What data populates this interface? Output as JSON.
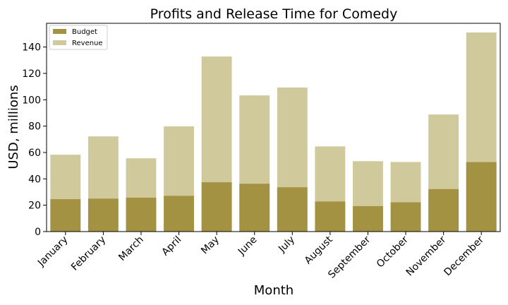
{
  "chart_data": {
    "type": "bar",
    "title": "Profits and Release Time for Comedy",
    "xlabel": "Month",
    "ylabel": "USD, millions",
    "ylim": [
      0,
      158
    ],
    "yticks": [
      0,
      20,
      40,
      60,
      80,
      100,
      120,
      140
    ],
    "categories": [
      "January",
      "February",
      "March",
      "April",
      "May",
      "June",
      "July",
      "August",
      "September",
      "October",
      "November",
      "December"
    ],
    "series": [
      {
        "name": "Revenue",
        "color": "#cfc99c",
        "values": [
          58.3,
          72.2,
          55.6,
          79.8,
          132.8,
          103.3,
          109.3,
          64.6,
          53.4,
          52.8,
          88.8,
          151.0
        ]
      },
      {
        "name": "Budget",
        "color": "#a39242",
        "values": [
          24.6,
          25.0,
          25.7,
          27.1,
          37.4,
          36.3,
          33.6,
          22.8,
          19.3,
          22.2,
          32.2,
          52.7
        ]
      }
    ],
    "legend": {
      "position": "top-left",
      "entries": [
        {
          "label": "Budget",
          "color": "#a39242"
        },
        {
          "label": "Revenue",
          "color": "#cfc99c"
        }
      ]
    },
    "grid": false
  }
}
